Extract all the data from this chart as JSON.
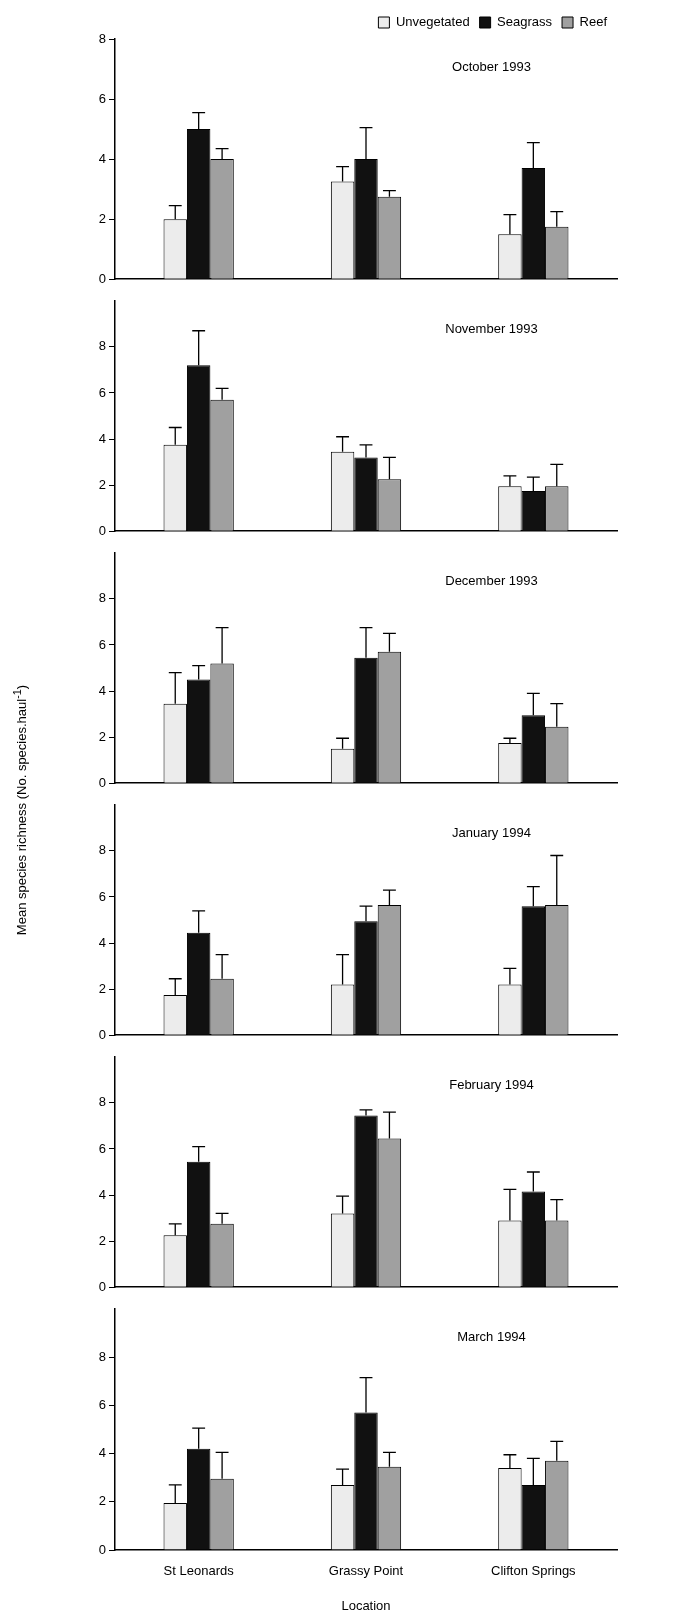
{
  "chart_data": [
    {
      "type": "bar",
      "title": "October 1993",
      "categories": [
        null,
        null,
        null
      ],
      "legend": "top right",
      "ylim": [
        0,
        8
      ],
      "yticks": [
        0,
        2,
        4,
        6,
        8
      ],
      "tick_labels": "y",
      "series": [
        {
          "name": "Unvegetated",
          "color": "#ececec",
          "values": [
            2.0,
            3.25,
            1.5
          ],
          "errors": [
            [
              2.0,
              2.45
            ],
            [
              3.25,
              3.75
            ],
            [
              1.5,
              2.15
            ]
          ]
        },
        {
          "name": "Seagrass",
          "color": "#111111",
          "values": [
            5.0,
            4.0,
            3.7
          ],
          "errors": [
            [
              5.0,
              5.55
            ],
            [
              4.0,
              5.05
            ],
            [
              3.7,
              4.55
            ]
          ]
        },
        {
          "name": "Reef",
          "color": "#a0a0a0",
          "values": [
            4.0,
            2.75,
            1.75
          ],
          "errors": [
            [
              4.0,
              4.35
            ],
            [
              2.75,
              2.95
            ],
            [
              1.75,
              2.25
            ]
          ]
        }
      ]
    },
    {
      "type": "bar",
      "title": "November 1993",
      "categories": [
        null,
        null,
        null
      ],
      "ylim": [
        0,
        10
      ],
      "yticks": [
        0,
        2,
        4,
        6,
        8
      ],
      "tick_labels": "y",
      "series": [
        {
          "color": "#ececec",
          "values": [
            3.75,
            3.45,
            1.95
          ],
          "errors": [
            [
              3.75,
              4.5
            ],
            [
              3.45,
              4.1
            ],
            [
              1.95,
              2.4
            ]
          ]
        },
        {
          "color": "#111111",
          "values": [
            7.2,
            3.2,
            1.75
          ],
          "errors": [
            [
              7.2,
              8.7
            ],
            [
              3.2,
              3.75
            ],
            [
              1.75,
              2.35
            ]
          ]
        },
        {
          "color": "#a0a0a0",
          "values": [
            5.7,
            2.25,
            1.95
          ],
          "errors": [
            [
              5.7,
              6.2
            ],
            [
              2.25,
              3.2
            ],
            [
              1.95,
              2.9
            ]
          ]
        }
      ]
    },
    {
      "type": "bar",
      "title": "December 1993",
      "categories": [
        null,
        null,
        null
      ],
      "ylim": [
        0,
        10
      ],
      "yticks": [
        0,
        2,
        4,
        6,
        8
      ],
      "tick_labels": "y",
      "series": [
        {
          "color": "#ececec",
          "values": [
            3.45,
            1.5,
            1.75
          ],
          "errors": [
            [
              3.45,
              4.8
            ],
            [
              1.5,
              1.95
            ],
            [
              1.75,
              1.95
            ]
          ]
        },
        {
          "color": "#111111",
          "values": [
            4.5,
            5.45,
            2.95
          ],
          "errors": [
            [
              4.5,
              5.1
            ],
            [
              5.45,
              6.75
            ],
            [
              2.95,
              3.9
            ]
          ]
        },
        {
          "color": "#a0a0a0",
          "values": [
            5.2,
            5.7,
            2.45
          ],
          "errors": [
            [
              5.2,
              6.75
            ],
            [
              5.7,
              6.5
            ],
            [
              2.45,
              3.45
            ]
          ]
        }
      ]
    },
    {
      "type": "bar",
      "title": "January 1994",
      "categories": [
        null,
        null,
        null
      ],
      "ylabel": "Mean species richness (No. species.haul$^{-1}$)",
      "ylim": [
        0,
        10
      ],
      "yticks": [
        0,
        2,
        4,
        6,
        8
      ],
      "tick_labels": "y",
      "series": [
        {
          "color": "#ececec",
          "values": [
            1.75,
            2.2,
            2.2
          ],
          "errors": [
            [
              1.75,
              2.45
            ],
            [
              2.2,
              3.5
            ],
            [
              2.2,
              2.9
            ]
          ]
        },
        {
          "color": "#111111",
          "values": [
            4.45,
            4.95,
            5.6
          ],
          "errors": [
            [
              4.45,
              5.4
            ],
            [
              4.95,
              5.6
            ],
            [
              5.6,
              6.45
            ]
          ]
        },
        {
          "color": "#a0a0a0",
          "values": [
            2.45,
            5.65,
            5.65
          ],
          "errors": [
            [
              2.45,
              3.5
            ],
            [
              5.65,
              6.3
            ],
            [
              5.65,
              7.8
            ]
          ]
        }
      ]
    },
    {
      "type": "bar",
      "title": "February 1994",
      "categories": [
        null,
        null,
        null
      ],
      "ylim": [
        0,
        10
      ],
      "yticks": [
        0,
        2,
        4,
        6,
        8
      ],
      "tick_labels": "y",
      "series": [
        {
          "color": "#ececec",
          "values": [
            2.25,
            3.2,
            2.9
          ],
          "errors": [
            [
              2.25,
              2.75
            ],
            [
              3.2,
              3.95
            ],
            [
              2.9,
              4.25
            ]
          ]
        },
        {
          "color": "#111111",
          "values": [
            5.45,
            7.45,
            4.15
          ],
          "errors": [
            [
              5.45,
              6.1
            ],
            [
              7.45,
              7.7
            ],
            [
              4.15,
              5.0
            ]
          ]
        },
        {
          "color": "#a0a0a0",
          "values": [
            2.75,
            6.45,
            2.9
          ],
          "errors": [
            [
              2.75,
              3.2
            ],
            [
              6.45,
              7.6
            ],
            [
              2.9,
              3.8
            ]
          ]
        }
      ]
    },
    {
      "type": "bar",
      "title": "March 1994",
      "categories": [
        "St Leonards",
        "Grassy Point",
        "Clifton Springs"
      ],
      "xlabel": "Location",
      "ylim": [
        0,
        10
      ],
      "yticks": [
        0,
        2,
        4,
        6,
        8
      ],
      "series": [
        {
          "color": "#ececec",
          "values": [
            1.95,
            2.7,
            3.4
          ],
          "errors": [
            [
              1.95,
              2.7
            ],
            [
              2.7,
              3.35
            ],
            [
              3.4,
              3.95
            ]
          ]
        },
        {
          "color": "#111111",
          "values": [
            4.2,
            5.7,
            2.7
          ],
          "errors": [
            [
              4.2,
              5.05
            ],
            [
              5.7,
              7.15
            ],
            [
              2.7,
              3.8
            ]
          ]
        },
        {
          "color": "#a0a0a0",
          "values": [
            2.95,
            3.45,
            3.7
          ],
          "errors": [
            [
              2.95,
              4.05
            ],
            [
              3.45,
              4.05
            ],
            [
              3.7,
              4.5
            ]
          ]
        }
      ]
    }
  ]
}
